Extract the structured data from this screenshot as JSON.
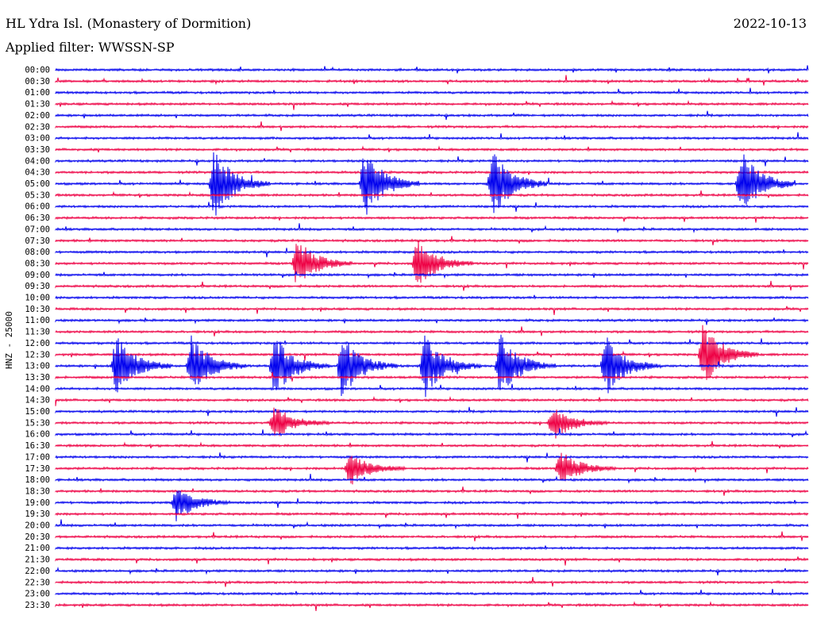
{
  "header": {
    "station": "HL Ydra Isl. (Monastery of Dormition)",
    "filter": "Applied filter: WWSSN-SP",
    "date": "2022-10-13"
  },
  "colors": {
    "trace_a": "#0000ee",
    "trace_b": "#ee0044"
  },
  "chart_data": {
    "type": "line",
    "title": "HL Ydra Isl. (Monastery of Dormition)",
    "subtitle": "Applied filter: WWSSN-SP",
    "ylabel": "HNZ - 25000",
    "series": [
      {
        "name": "",
        "color": "#0000ee",
        "traces": [
          "00:00",
          "01:00",
          "02:00",
          "03:00",
          "04:00",
          "05:00",
          "06:00",
          "07:00",
          "08:00",
          "09:00",
          "10:00",
          "11:00",
          "12:00",
          "13:00",
          "14:00",
          "15:00",
          "16:00",
          "17:00",
          "18:00",
          "19:00",
          "20:00",
          "21:00",
          "22:00",
          "23:00"
        ]
      },
      {
        "name": "",
        "color": "#ee0044",
        "traces": [
          "00:30",
          "01:30",
          "02:30",
          "03:30",
          "04:30",
          "05:30",
          "06:30",
          "07:30",
          "08:30",
          "09:30",
          "10:30",
          "11:30",
          "12:30",
          "13:30",
          "14:30",
          "15:30",
          "16:30",
          "17:30",
          "18:30",
          "19:30",
          "20:30",
          "21:30",
          "22:30",
          "23:30"
        ]
      }
    ],
    "trace_labels": [
      "00:00",
      "00:30",
      "01:00",
      "01:30",
      "02:00",
      "02:30",
      "03:00",
      "03:30",
      "04:00",
      "04:30",
      "05:00",
      "05:30",
      "06:00",
      "06:30",
      "07:00",
      "07:30",
      "08:00",
      "08:30",
      "09:00",
      "09:30",
      "10:00",
      "10:30",
      "11:00",
      "11:30",
      "12:00",
      "12:30",
      "13:00",
      "13:30",
      "14:00",
      "14:30",
      "15:00",
      "15:30",
      "16:00",
      "16:30",
      "17:00",
      "17:30",
      "18:00",
      "18:30",
      "19:00",
      "19:30",
      "20:00",
      "20:30",
      "21:00",
      "21:30",
      "22:00",
      "22:30",
      "23:00",
      "23:30"
    ],
    "events": [
      {
        "trace": "05:00",
        "x": 0.21,
        "amp": 1.0
      },
      {
        "trace": "05:00",
        "x": 0.41,
        "amp": 1.0
      },
      {
        "trace": "05:00",
        "x": 0.58,
        "amp": 1.0
      },
      {
        "trace": "05:00",
        "x": 0.91,
        "amp": 1.0
      },
      {
        "trace": "08:30",
        "x": 0.32,
        "amp": 0.7
      },
      {
        "trace": "08:30",
        "x": 0.48,
        "amp": 0.7
      },
      {
        "trace": "12:30",
        "x": 0.86,
        "amp": 0.9
      },
      {
        "trace": "13:00",
        "x": 0.08,
        "amp": 0.9
      },
      {
        "trace": "13:00",
        "x": 0.18,
        "amp": 0.9
      },
      {
        "trace": "13:00",
        "x": 0.29,
        "amp": 0.9
      },
      {
        "trace": "13:00",
        "x": 0.38,
        "amp": 0.9
      },
      {
        "trace": "13:00",
        "x": 0.49,
        "amp": 0.9
      },
      {
        "trace": "13:00",
        "x": 0.59,
        "amp": 0.9
      },
      {
        "trace": "13:00",
        "x": 0.73,
        "amp": 0.9
      },
      {
        "trace": "15:30",
        "x": 0.29,
        "amp": 0.5
      },
      {
        "trace": "15:30",
        "x": 0.66,
        "amp": 0.5
      },
      {
        "trace": "17:30",
        "x": 0.39,
        "amp": 0.5
      },
      {
        "trace": "17:30",
        "x": 0.67,
        "amp": 0.5
      },
      {
        "trace": "19:00",
        "x": 0.16,
        "amp": 0.5
      }
    ]
  }
}
